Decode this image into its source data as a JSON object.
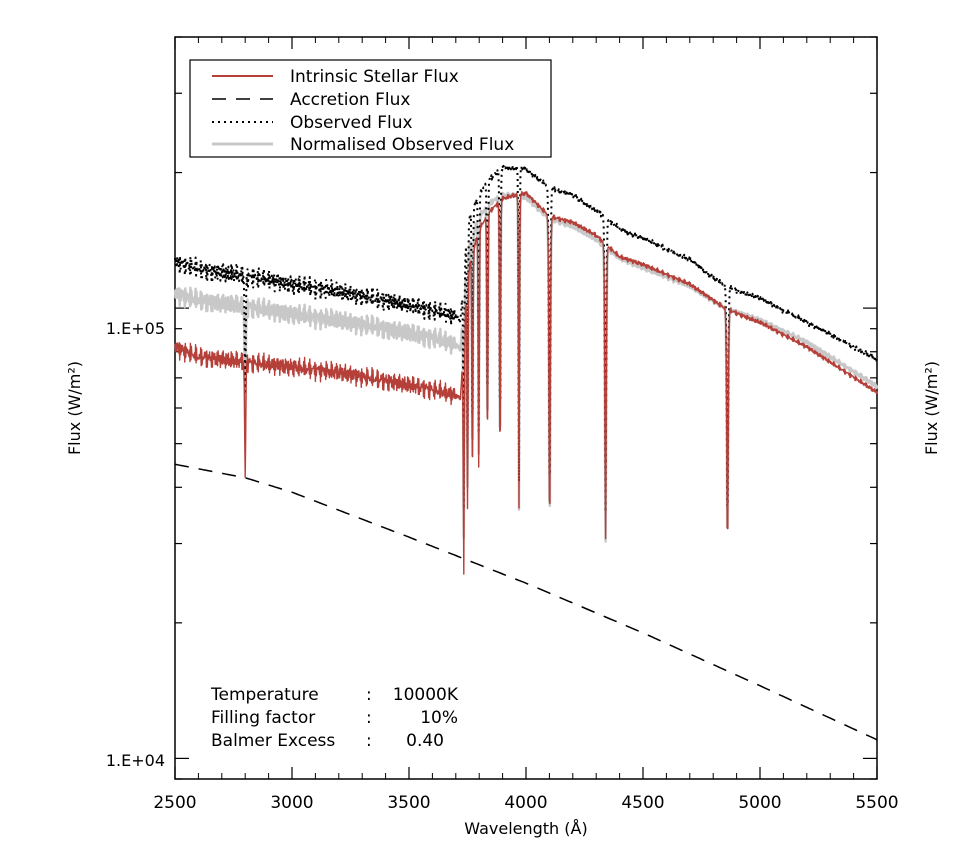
{
  "chart_data": {
    "type": "line",
    "title": "",
    "xlabel": "Wavelength (Å)",
    "ylabel_left": "Flux (W/m²)",
    "ylabel_right": "Flux (W/m²)",
    "xlim": [
      2500,
      5500
    ],
    "ylim": [
      9000,
      400000
    ],
    "yscale": "log",
    "x_ticks": [
      2500,
      3000,
      3500,
      4000,
      4500,
      5000,
      5500
    ],
    "x_tick_labels": [
      "2500",
      "3000",
      "3500",
      "4000",
      "4500",
      "5000",
      "5500"
    ],
    "y_tick_labels": [
      {
        "value": 100000,
        "label": "1.E+05"
      },
      {
        "value": 10000,
        "label": "1.E+04"
      }
    ],
    "legend": [
      {
        "label": "Intrinsic Stellar Flux",
        "color": "#b5403a",
        "style": "solid"
      },
      {
        "label": "Accretion Flux",
        "color": "#000000",
        "style": "dashed"
      },
      {
        "label": "Observed Flux",
        "color": "#000000",
        "style": "dotted"
      },
      {
        "label": "Normalised Observed Flux",
        "color": "#c8c8c8",
        "style": "solid"
      }
    ],
    "legend_position": "top-left",
    "annotations": [
      {
        "label": "Temperature",
        "sep": ":",
        "value": "10000K"
      },
      {
        "label": "Filling factor",
        "sep": ":",
        "value": "10%"
      },
      {
        "label": "Balmer Excess",
        "sep": ":",
        "value": "0.40"
      }
    ],
    "series": [
      {
        "name": "Intrinsic Stellar Flux",
        "x": [
          2500,
          2600,
          2800,
          3000,
          3200,
          3400,
          3600,
          3700,
          3720,
          3750,
          3800,
          3850,
          3900,
          3950,
          4000,
          4100,
          4200,
          4300,
          4400,
          4500,
          4700,
          4850,
          4950,
          5000,
          5200,
          5500
        ],
        "y": [
          82000,
          78000,
          76000,
          74000,
          72000,
          69000,
          66000,
          64000,
          63000,
          120000,
          150000,
          165000,
          175000,
          178000,
          180000,
          160000,
          155000,
          145000,
          130000,
          125000,
          113000,
          100000,
          95000,
          93000,
          82000,
          65000
        ]
      },
      {
        "name": "Accretion Flux",
        "x": [
          2500,
          2800,
          3000,
          3500,
          4000,
          4500,
          5000,
          5500
        ],
        "y": [
          45000,
          42000,
          39000,
          31000,
          24500,
          19000,
          14500,
          11000
        ]
      },
      {
        "name": "Observed Flux",
        "x": [
          2500,
          2600,
          2800,
          3000,
          3200,
          3400,
          3600,
          3700,
          3720,
          3750,
          3800,
          3850,
          3900,
          3950,
          4000,
          4100,
          4200,
          4300,
          4400,
          4500,
          4700,
          4850,
          4950,
          5000,
          5200,
          5500
        ],
        "y": [
          127000,
          122000,
          118000,
          113000,
          109000,
          104000,
          99000,
          96000,
          94000,
          155000,
          180000,
          195000,
          205000,
          205000,
          204000,
          185000,
          178000,
          165000,
          150000,
          143000,
          128000,
          112000,
          107000,
          105000,
          93000,
          77000
        ]
      },
      {
        "name": "Normalised Observed Flux",
        "x": [
          2500,
          2600,
          2800,
          3000,
          3200,
          3400,
          3600,
          3700,
          3720,
          3750,
          3800,
          3850,
          3900,
          3950,
          4000,
          4100,
          4200,
          4300,
          4400,
          4500,
          4700,
          4850,
          4950,
          5000,
          5200,
          5500
        ],
        "y": [
          108000,
          104000,
          101000,
          97000,
          94000,
          90000,
          86000,
          83000,
          81000,
          134000,
          160000,
          172000,
          178000,
          178000,
          176000,
          158000,
          152000,
          142000,
          129000,
          123000,
          112000,
          100000,
          96000,
          94000,
          84000,
          67000
        ]
      }
    ],
    "absorption_lines": [
      {
        "x": 2800,
        "depth": 0.45
      },
      {
        "x": 3734,
        "depth": 0.7
      },
      {
        "x": 3750,
        "depth": 0.7
      },
      {
        "x": 3771,
        "depth": 0.7
      },
      {
        "x": 3798,
        "depth": 0.7
      },
      {
        "x": 3835,
        "depth": 0.7
      },
      {
        "x": 3889,
        "depth": 0.75
      },
      {
        "x": 3970,
        "depth": 0.8
      },
      {
        "x": 4101,
        "depth": 0.8
      },
      {
        "x": 4340,
        "depth": 0.78
      },
      {
        "x": 4861,
        "depth": 0.7
      }
    ]
  }
}
